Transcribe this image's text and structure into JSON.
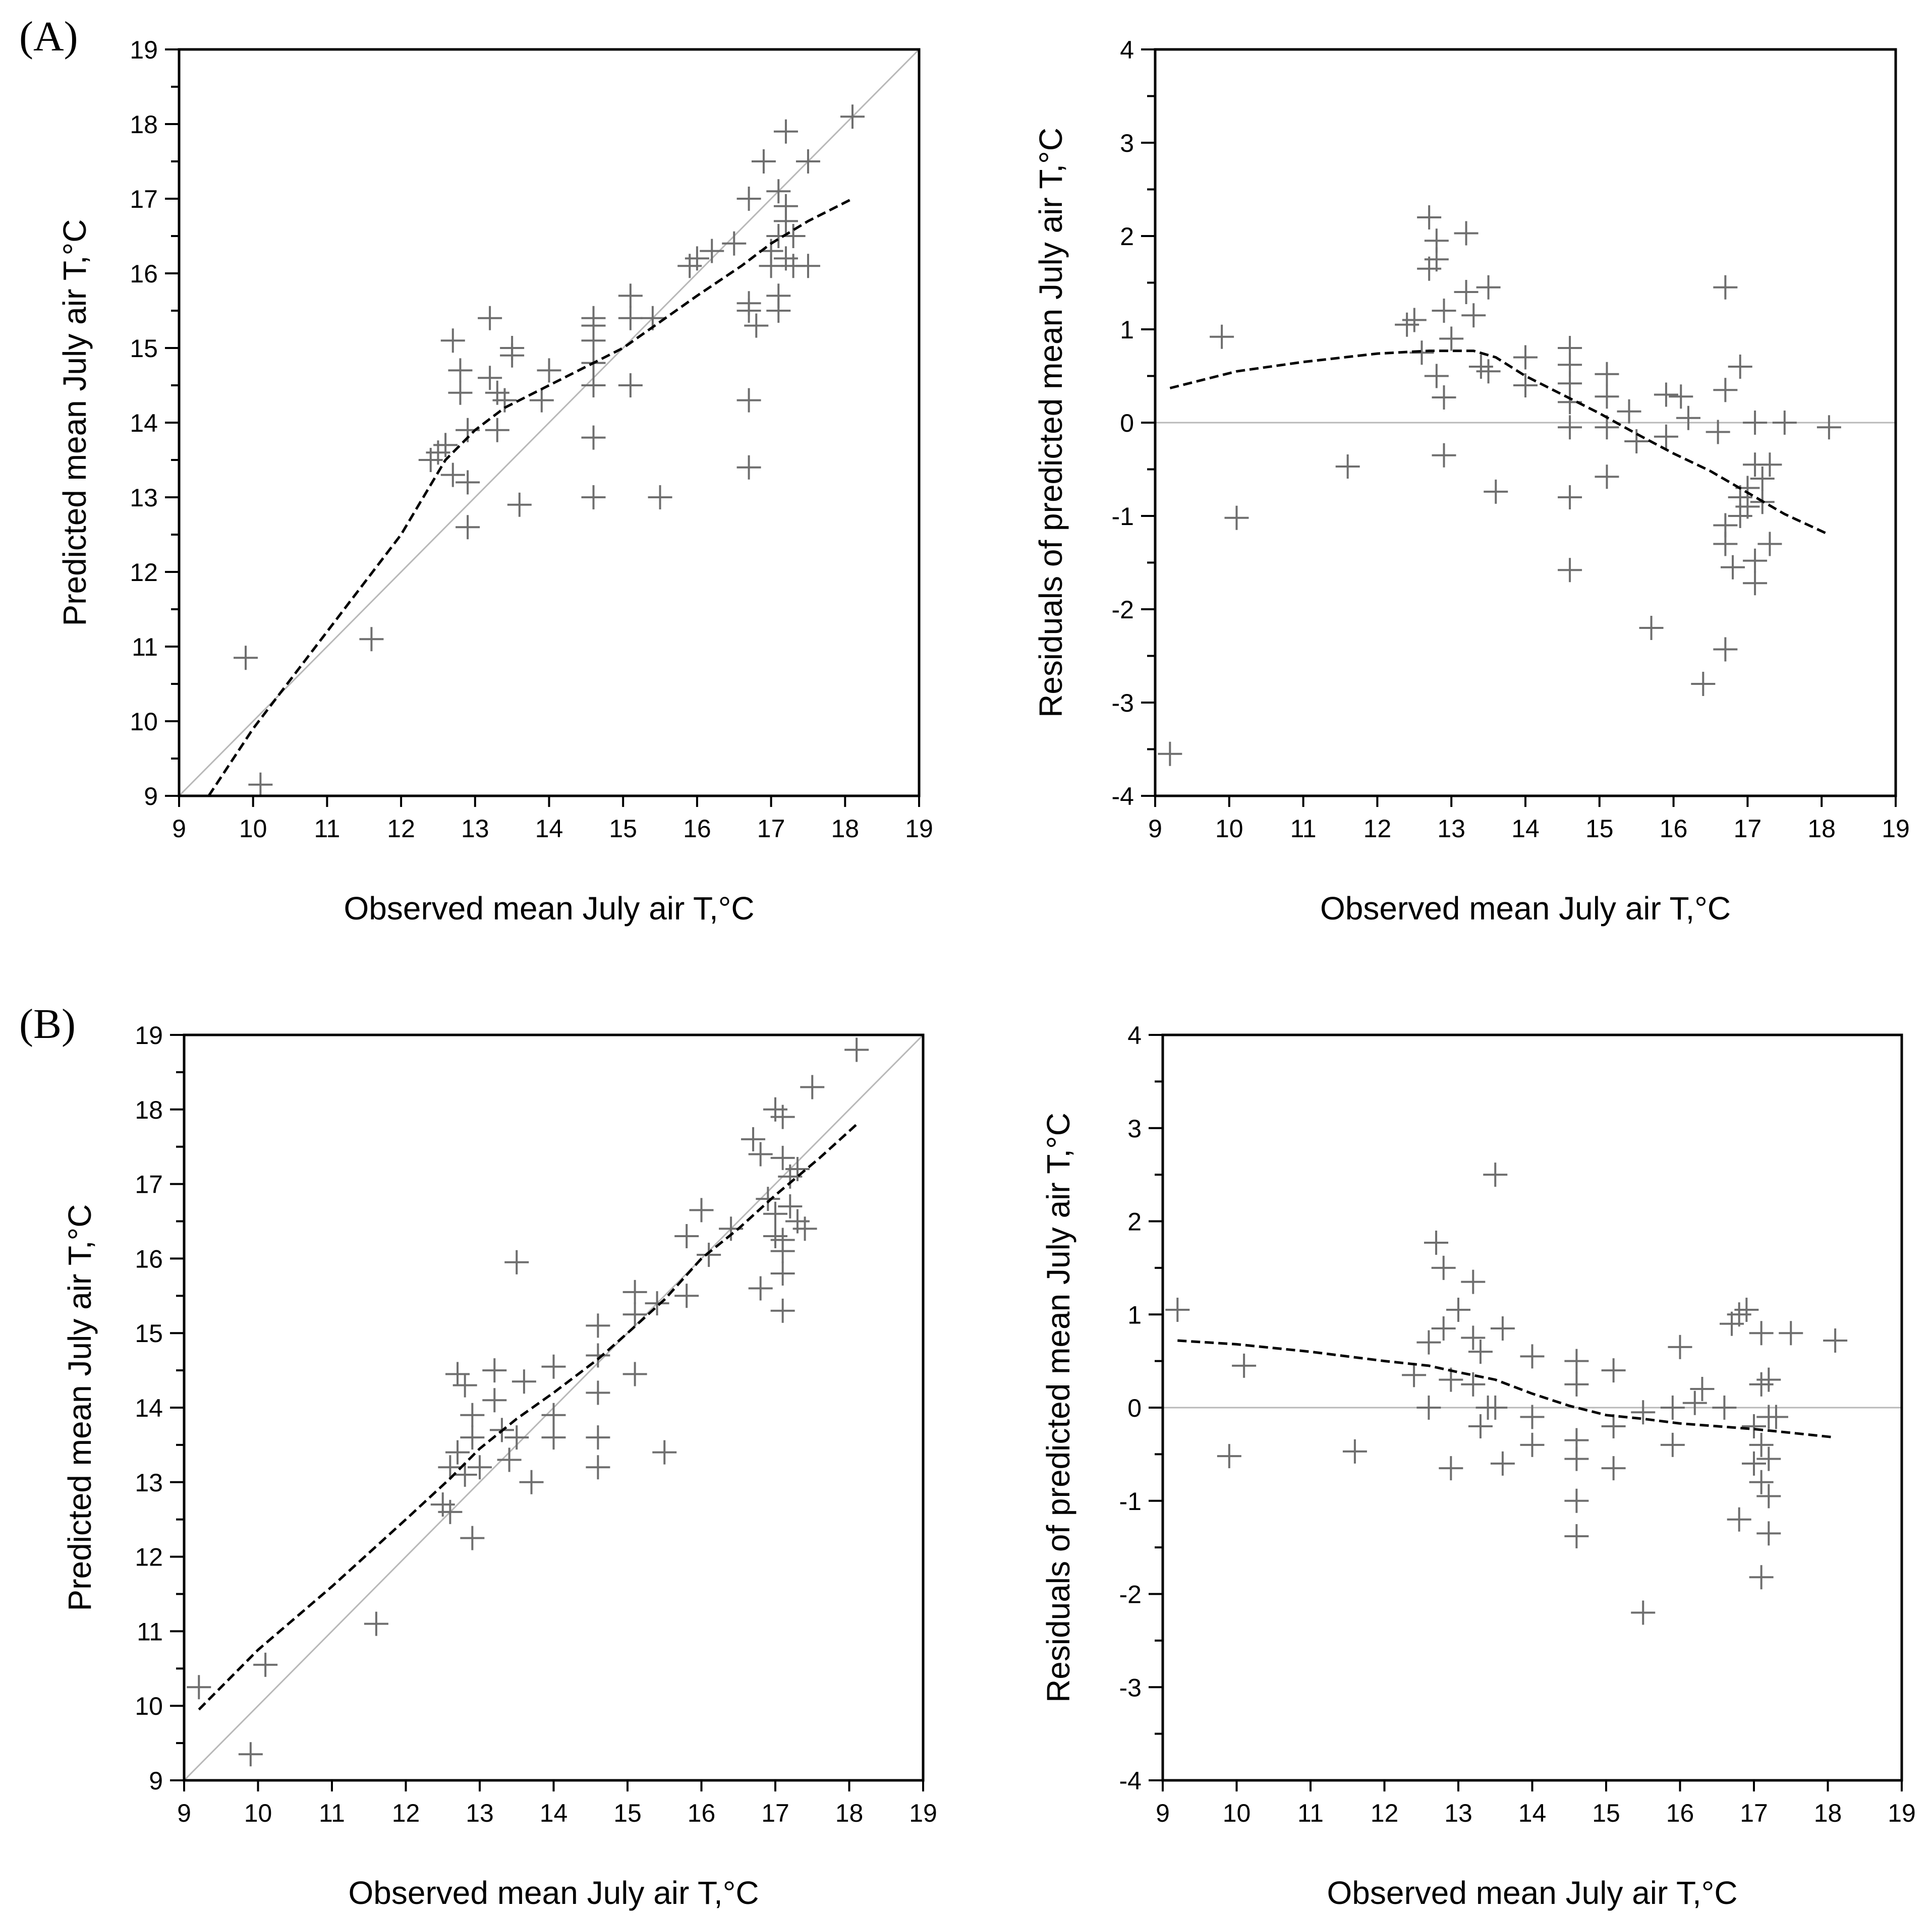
{
  "figure": {
    "panel_labels": [
      "(A)",
      "(B)"
    ]
  },
  "chart_data": [
    {
      "panel": "(A)",
      "type": "scatter",
      "xlabel": "Observed mean July air T,°C",
      "ylabel": "Predicted mean July air T,°C",
      "xlim": [
        9,
        19
      ],
      "ylim": [
        9,
        19
      ],
      "xticks": [
        9,
        10,
        11,
        12,
        13,
        14,
        15,
        16,
        17,
        18,
        19
      ],
      "yticks": [
        9,
        10,
        11,
        12,
        13,
        14,
        15,
        16,
        17,
        18,
        19
      ],
      "reference_line": {
        "type": "identity"
      },
      "trend_line": [
        [
          9.4,
          9.0
        ],
        [
          10.0,
          9.9
        ],
        [
          11.0,
          11.2
        ],
        [
          12.0,
          12.5
        ],
        [
          12.6,
          13.5
        ],
        [
          13.0,
          13.9
        ],
        [
          13.4,
          14.2
        ],
        [
          14.0,
          14.5
        ],
        [
          15.0,
          15.0
        ],
        [
          16.0,
          15.7
        ],
        [
          16.6,
          16.1
        ],
        [
          17.0,
          16.4
        ],
        [
          17.5,
          16.7
        ],
        [
          18.1,
          17.0
        ]
      ],
      "points": [
        [
          9.9,
          10.85
        ],
        [
          10.1,
          9.15
        ],
        [
          11.6,
          11.1
        ],
        [
          12.4,
          13.5
        ],
        [
          12.5,
          13.6
        ],
        [
          12.6,
          13.7
        ],
        [
          12.7,
          13.3
        ],
        [
          12.7,
          15.1
        ],
        [
          12.8,
          14.7
        ],
        [
          12.8,
          14.4
        ],
        [
          12.9,
          12.6
        ],
        [
          12.9,
          13.2
        ],
        [
          12.9,
          13.9
        ],
        [
          13.2,
          15.4
        ],
        [
          13.2,
          14.6
        ],
        [
          13.3,
          14.4
        ],
        [
          13.3,
          13.9
        ],
        [
          13.4,
          14.3
        ],
        [
          13.5,
          15.0
        ],
        [
          13.5,
          14.9
        ],
        [
          13.6,
          12.9
        ],
        [
          13.9,
          14.3
        ],
        [
          14.0,
          14.7
        ],
        [
          14.6,
          15.4
        ],
        [
          14.6,
          15.3
        ],
        [
          14.6,
          15.1
        ],
        [
          14.6,
          14.8
        ],
        [
          14.6,
          14.5
        ],
        [
          14.6,
          13.8
        ],
        [
          14.6,
          13.0
        ],
        [
          15.1,
          15.7
        ],
        [
          15.1,
          15.4
        ],
        [
          15.1,
          14.5
        ],
        [
          15.4,
          15.4
        ],
        [
          15.5,
          13.0
        ],
        [
          15.9,
          16.1
        ],
        [
          16.0,
          16.2
        ],
        [
          16.2,
          16.3
        ],
        [
          16.5,
          16.4
        ],
        [
          16.7,
          17.0
        ],
        [
          16.7,
          15.6
        ],
        [
          16.7,
          15.5
        ],
        [
          16.7,
          14.3
        ],
        [
          16.7,
          13.4
        ],
        [
          16.8,
          15.3
        ],
        [
          16.9,
          17.5
        ],
        [
          17.0,
          16.3
        ],
        [
          17.0,
          16.1
        ],
        [
          17.1,
          17.1
        ],
        [
          17.1,
          16.5
        ],
        [
          17.1,
          15.7
        ],
        [
          17.1,
          15.5
        ],
        [
          17.2,
          17.9
        ],
        [
          17.2,
          16.9
        ],
        [
          17.2,
          16.7
        ],
        [
          17.2,
          16.2
        ],
        [
          17.3,
          16.5
        ],
        [
          17.3,
          16.1
        ],
        [
          17.5,
          17.5
        ],
        [
          17.5,
          16.1
        ],
        [
          18.1,
          18.1
        ]
      ]
    },
    {
      "panel": "(A)",
      "type": "scatter",
      "xlabel": "Observed mean July air T,°C",
      "ylabel": "Residuals  of predicted mean July air T,°C",
      "xlim": [
        9,
        19
      ],
      "ylim": [
        -4,
        4
      ],
      "xticks": [
        9,
        10,
        11,
        12,
        13,
        14,
        15,
        16,
        17,
        18,
        19
      ],
      "yticks": [
        -4,
        -3,
        -2,
        -1,
        0,
        1,
        2,
        3,
        4
      ],
      "reference_line": {
        "type": "zero"
      },
      "trend_line": [
        [
          9.2,
          0.37
        ],
        [
          10.1,
          0.55
        ],
        [
          11.0,
          0.65
        ],
        [
          12.0,
          0.74
        ],
        [
          12.7,
          0.77
        ],
        [
          13.3,
          0.77
        ],
        [
          13.6,
          0.7
        ],
        [
          14.0,
          0.5
        ],
        [
          14.5,
          0.3
        ],
        [
          15.0,
          0.1
        ],
        [
          15.5,
          -0.12
        ],
        [
          16.0,
          -0.33
        ],
        [
          16.5,
          -0.52
        ],
        [
          17.0,
          -0.75
        ],
        [
          17.5,
          -0.98
        ],
        [
          18.1,
          -1.2
        ]
      ],
      "points": [
        [
          9.2,
          -3.55
        ],
        [
          9.9,
          0.92
        ],
        [
          10.1,
          -1.02
        ],
        [
          11.6,
          -0.47
        ],
        [
          12.4,
          1.05
        ],
        [
          12.5,
          1.1
        ],
        [
          12.6,
          0.75
        ],
        [
          12.7,
          2.2
        ],
        [
          12.7,
          1.65
        ],
        [
          12.8,
          1.95
        ],
        [
          12.8,
          1.75
        ],
        [
          12.8,
          0.5
        ],
        [
          12.9,
          1.2
        ],
        [
          12.9,
          0.27
        ],
        [
          12.9,
          -0.35
        ],
        [
          13.0,
          0.9
        ],
        [
          13.2,
          2.03
        ],
        [
          13.2,
          1.4
        ],
        [
          13.3,
          1.15
        ],
        [
          13.4,
          0.6
        ],
        [
          13.5,
          1.45
        ],
        [
          13.5,
          0.55
        ],
        [
          13.6,
          -0.74
        ],
        [
          14.0,
          0.7
        ],
        [
          14.0,
          0.4
        ],
        [
          14.6,
          0.8
        ],
        [
          14.6,
          0.62
        ],
        [
          14.6,
          0.42
        ],
        [
          14.6,
          0.22
        ],
        [
          14.6,
          -0.05
        ],
        [
          14.6,
          -0.8
        ],
        [
          14.6,
          -1.58
        ],
        [
          15.1,
          0.52
        ],
        [
          15.1,
          0.28
        ],
        [
          15.1,
          -0.05
        ],
        [
          15.1,
          -0.58
        ],
        [
          15.4,
          0.12
        ],
        [
          15.5,
          -0.2
        ],
        [
          15.7,
          -2.2
        ],
        [
          15.9,
          0.3
        ],
        [
          15.9,
          -0.15
        ],
        [
          16.1,
          0.28
        ],
        [
          16.2,
          0.05
        ],
        [
          16.4,
          -2.8
        ],
        [
          16.6,
          -0.1
        ],
        [
          16.7,
          0.35
        ],
        [
          16.7,
          -1.1
        ],
        [
          16.7,
          -1.3
        ],
        [
          16.7,
          -2.43
        ],
        [
          16.7,
          1.45
        ],
        [
          16.8,
          -1.55
        ],
        [
          16.9,
          -0.8
        ],
        [
          16.9,
          -1.0
        ],
        [
          16.9,
          0.6
        ],
        [
          17.0,
          -0.7
        ],
        [
          17.0,
          -0.9
        ],
        [
          17.1,
          0.0
        ],
        [
          17.1,
          -0.45
        ],
        [
          17.1,
          -1.48
        ],
        [
          17.1,
          -1.72
        ],
        [
          17.2,
          -0.6
        ],
        [
          17.2,
          -0.85
        ],
        [
          17.3,
          -0.45
        ],
        [
          17.3,
          -1.3
        ],
        [
          17.5,
          0.0
        ],
        [
          18.1,
          -0.05
        ]
      ]
    },
    {
      "panel": "(B)",
      "type": "scatter",
      "xlabel": "Observed mean July air T,°C",
      "ylabel": "Predicted mean July air T,°C",
      "xlim": [
        9,
        19
      ],
      "ylim": [
        9,
        19
      ],
      "xticks": [
        9,
        10,
        11,
        12,
        13,
        14,
        15,
        16,
        17,
        18,
        19
      ],
      "yticks": [
        9,
        10,
        11,
        12,
        13,
        14,
        15,
        16,
        17,
        18,
        19
      ],
      "reference_line": {
        "type": "identity"
      },
      "trend_line": [
        [
          9.2,
          9.95
        ],
        [
          10.0,
          10.75
        ],
        [
          11.0,
          11.6
        ],
        [
          12.0,
          12.5
        ],
        [
          12.6,
          13.05
        ],
        [
          13.0,
          13.45
        ],
        [
          13.5,
          13.85
        ],
        [
          14.0,
          14.2
        ],
        [
          14.6,
          14.65
        ],
        [
          15.0,
          15.0
        ],
        [
          15.5,
          15.45
        ],
        [
          16.0,
          16.0
        ],
        [
          16.5,
          16.4
        ],
        [
          17.0,
          16.85
        ],
        [
          17.3,
          17.1
        ],
        [
          17.6,
          17.35
        ],
        [
          18.1,
          17.8
        ]
      ],
      "points": [
        [
          9.2,
          10.25
        ],
        [
          9.9,
          9.35
        ],
        [
          10.1,
          10.55
        ],
        [
          11.6,
          11.1
        ],
        [
          12.5,
          12.7
        ],
        [
          12.6,
          13.2
        ],
        [
          12.6,
          12.6
        ],
        [
          12.7,
          13.4
        ],
        [
          12.7,
          14.45
        ],
        [
          12.8,
          14.3
        ],
        [
          12.8,
          13.1
        ],
        [
          12.9,
          13.9
        ],
        [
          12.9,
          13.6
        ],
        [
          12.9,
          12.25
        ],
        [
          13.0,
          13.2
        ],
        [
          13.2,
          14.5
        ],
        [
          13.2,
          14.1
        ],
        [
          13.3,
          13.7
        ],
        [
          13.4,
          13.3
        ],
        [
          13.5,
          15.95
        ],
        [
          13.5,
          13.6
        ],
        [
          13.6,
          14.35
        ],
        [
          13.7,
          13.0
        ],
        [
          14.0,
          14.55
        ],
        [
          14.0,
          13.9
        ],
        [
          14.0,
          13.6
        ],
        [
          14.6,
          15.1
        ],
        [
          14.6,
          14.7
        ],
        [
          14.6,
          14.2
        ],
        [
          14.6,
          13.6
        ],
        [
          14.6,
          13.2
        ],
        [
          15.1,
          15.55
        ],
        [
          15.1,
          15.25
        ],
        [
          15.1,
          14.45
        ],
        [
          15.4,
          15.4
        ],
        [
          15.5,
          13.4
        ],
        [
          15.8,
          16.3
        ],
        [
          15.8,
          15.5
        ],
        [
          16.0,
          16.65
        ],
        [
          16.1,
          16.05
        ],
        [
          16.4,
          16.4
        ],
        [
          16.7,
          17.6
        ],
        [
          16.8,
          17.4
        ],
        [
          16.8,
          15.6
        ],
        [
          16.9,
          16.8
        ],
        [
          17.0,
          18.0
        ],
        [
          17.0,
          16.6
        ],
        [
          17.0,
          16.3
        ],
        [
          17.1,
          17.9
        ],
        [
          17.1,
          17.35
        ],
        [
          17.1,
          16.25
        ],
        [
          17.1,
          16.1
        ],
        [
          17.1,
          15.8
        ],
        [
          17.1,
          15.3
        ],
        [
          17.2,
          17.1
        ],
        [
          17.2,
          16.7
        ],
        [
          17.3,
          17.2
        ],
        [
          17.3,
          16.5
        ],
        [
          17.4,
          16.4
        ],
        [
          17.5,
          18.3
        ],
        [
          18.1,
          18.8
        ]
      ]
    },
    {
      "panel": "(B)",
      "type": "scatter",
      "xlabel": "Observed mean July air T,°C",
      "ylabel": "Residuals  of predicted mean July air T,°C",
      "xlim": [
        9,
        19
      ],
      "ylim": [
        -4,
        4
      ],
      "xticks": [
        9,
        10,
        11,
        12,
        13,
        14,
        15,
        16,
        17,
        18,
        19
      ],
      "yticks": [
        -4,
        -3,
        -2,
        -1,
        0,
        1,
        2,
        3,
        4
      ],
      "reference_line": {
        "type": "zero"
      },
      "trend_line": [
        [
          9.2,
          0.72
        ],
        [
          10.0,
          0.68
        ],
        [
          11.0,
          0.6
        ],
        [
          12.0,
          0.5
        ],
        [
          12.6,
          0.45
        ],
        [
          13.0,
          0.38
        ],
        [
          13.5,
          0.3
        ],
        [
          14.0,
          0.15
        ],
        [
          14.5,
          0.02
        ],
        [
          15.0,
          -0.08
        ],
        [
          15.5,
          -0.12
        ],
        [
          16.0,
          -0.17
        ],
        [
          16.5,
          -0.2
        ],
        [
          17.0,
          -0.23
        ],
        [
          17.5,
          -0.27
        ],
        [
          18.1,
          -0.32
        ]
      ],
      "points": [
        [
          9.2,
          1.05
        ],
        [
          9.9,
          -0.52
        ],
        [
          10.1,
          0.45
        ],
        [
          11.6,
          -0.47
        ],
        [
          12.4,
          0.35
        ],
        [
          12.6,
          0.7
        ],
        [
          12.6,
          0.0
        ],
        [
          12.7,
          1.77
        ],
        [
          12.8,
          1.5
        ],
        [
          12.8,
          0.85
        ],
        [
          12.9,
          0.3
        ],
        [
          12.9,
          -0.65
        ],
        [
          13.0,
          1.05
        ],
        [
          13.2,
          1.35
        ],
        [
          13.2,
          0.75
        ],
        [
          13.2,
          0.25
        ],
        [
          13.3,
          0.6
        ],
        [
          13.3,
          -0.2
        ],
        [
          13.4,
          0.0
        ],
        [
          13.5,
          2.5
        ],
        [
          13.5,
          0.0
        ],
        [
          13.6,
          0.85
        ],
        [
          13.6,
          -0.6
        ],
        [
          14.0,
          0.55
        ],
        [
          14.0,
          -0.1
        ],
        [
          14.0,
          -0.4
        ],
        [
          14.6,
          0.5
        ],
        [
          14.6,
          0.25
        ],
        [
          14.6,
          -0.35
        ],
        [
          14.6,
          -0.55
        ],
        [
          14.6,
          -1.0
        ],
        [
          14.6,
          -1.38
        ],
        [
          15.1,
          0.4
        ],
        [
          15.1,
          -0.2
        ],
        [
          15.1,
          -0.65
        ],
        [
          15.5,
          -0.05
        ],
        [
          15.5,
          -2.2
        ],
        [
          15.9,
          0.0
        ],
        [
          15.9,
          -0.4
        ],
        [
          16.0,
          0.65
        ],
        [
          16.2,
          0.05
        ],
        [
          16.3,
          0.2
        ],
        [
          16.6,
          0.0
        ],
        [
          16.7,
          0.9
        ],
        [
          16.8,
          1.0
        ],
        [
          16.8,
          -1.2
        ],
        [
          16.9,
          1.05
        ],
        [
          17.0,
          -0.2
        ],
        [
          17.0,
          -0.6
        ],
        [
          17.1,
          0.8
        ],
        [
          17.1,
          0.25
        ],
        [
          17.1,
          -0.4
        ],
        [
          17.1,
          -0.8
        ],
        [
          17.1,
          -1.82
        ],
        [
          17.2,
          0.3
        ],
        [
          17.2,
          -0.1
        ],
        [
          17.2,
          -0.55
        ],
        [
          17.2,
          -0.95
        ],
        [
          17.2,
          -1.35
        ],
        [
          17.3,
          -0.1
        ],
        [
          17.5,
          0.8
        ],
        [
          18.1,
          0.72
        ]
      ]
    }
  ]
}
